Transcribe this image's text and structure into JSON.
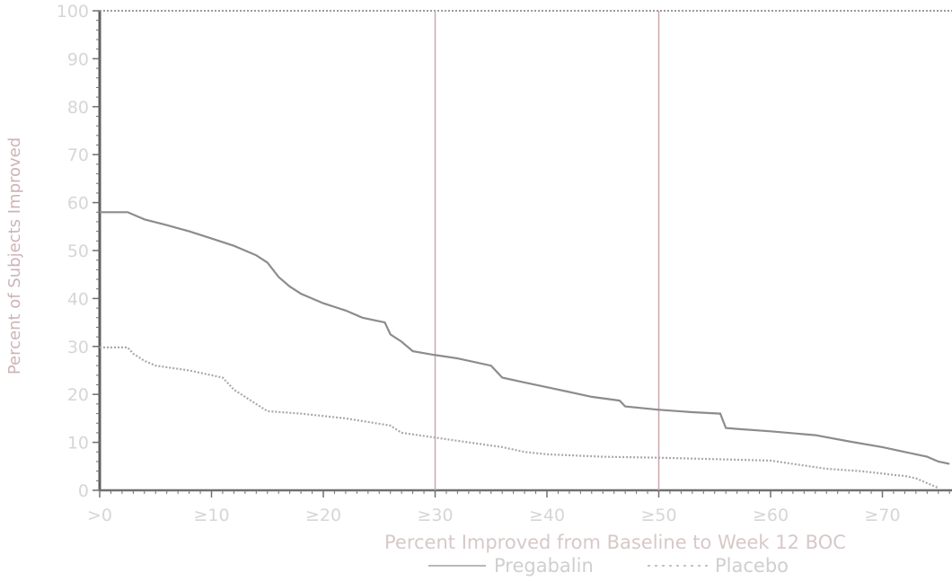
{
  "chart_data": {
    "type": "line",
    "title": "",
    "xlabel": "Percent Improved from Baseline to Week 12 BOC",
    "ylabel": "Percent of Subjects Improved",
    "xlim": [
      0,
      76
    ],
    "ylim": [
      0,
      100
    ],
    "x_ticks": [
      0,
      10,
      20,
      30,
      40,
      50,
      60,
      70
    ],
    "x_tick_labels": [
      ">0",
      "≥10",
      "≥20",
      "≥30",
      "≥40",
      "≥50",
      "≥60",
      "≥70"
    ],
    "y_ticks": [
      0,
      10,
      20,
      30,
      40,
      50,
      60,
      70,
      80,
      90,
      100
    ],
    "y_tick_labels": [
      "0",
      "10",
      "20",
      "30",
      "40",
      "50",
      "60",
      "70",
      "80",
      "90",
      "100"
    ],
    "reference_lines_x": [
      30,
      50
    ],
    "grid": false,
    "legend_position": "bottom",
    "series": [
      {
        "name": "Pregabalin",
        "style": "solid",
        "color": "#8c8c8c",
        "x": [
          0,
          2.5,
          4,
          6,
          8,
          10,
          12,
          14,
          15,
          16,
          17,
          18,
          20,
          22,
          23.5,
          25.5,
          26,
          27,
          28,
          30,
          32,
          35,
          36,
          38,
          40,
          42,
          44,
          46.5,
          47,
          50,
          53,
          55.5,
          56,
          57,
          60,
          64,
          67,
          70,
          72,
          73,
          74,
          75,
          76
        ],
        "y": [
          58,
          58,
          56.5,
          55.3,
          54,
          52.5,
          51,
          49,
          47.5,
          44.5,
          42.5,
          41,
          39,
          37.5,
          36,
          35,
          32.5,
          31,
          29,
          28.2,
          27.5,
          26,
          23.5,
          22.5,
          21.5,
          20.5,
          19.5,
          18.7,
          17.5,
          16.8,
          16.3,
          16,
          13,
          12.8,
          12.3,
          11.5,
          10.2,
          9,
          8,
          7.5,
          7,
          6,
          5.5
        ]
      },
      {
        "name": "Placebo",
        "style": "dotted",
        "color": "#a8a8a8",
        "x": [
          0,
          2.5,
          3,
          4,
          5,
          8,
          11,
          12,
          13,
          14,
          15,
          18,
          22,
          26,
          27,
          30,
          33,
          36,
          38,
          40,
          45,
          50,
          55,
          60,
          62,
          65,
          68,
          70,
          71,
          72,
          73,
          74,
          75
        ],
        "y": [
          29.8,
          29.8,
          28.5,
          27,
          26,
          25,
          23.5,
          21,
          19.5,
          18,
          16.5,
          16,
          15,
          13.5,
          12,
          11,
          10,
          9,
          8,
          7.5,
          7,
          6.8,
          6.5,
          6.2,
          5.5,
          4.5,
          4,
          3.5,
          3.2,
          3,
          2.5,
          1.5,
          0.5
        ]
      }
    ]
  }
}
